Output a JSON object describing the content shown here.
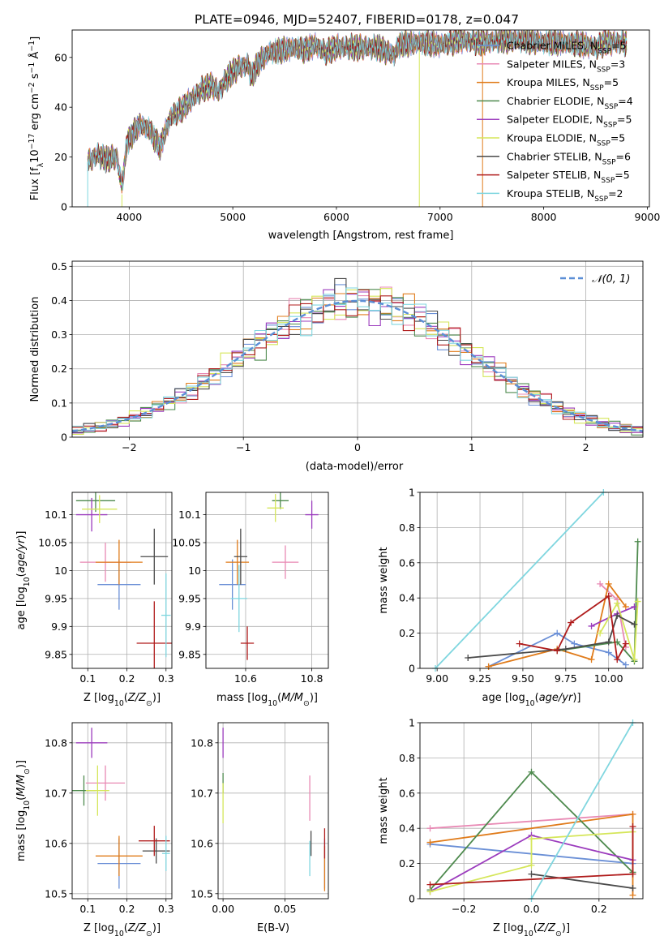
{
  "title": "PLATE=0946, MJD=52407, FIBERID=0178, z=0.047",
  "models": [
    {
      "name": "Chabrier MILES, N",
      "nssp": "=5",
      "color": "#6a8fd6"
    },
    {
      "name": "Salpeter MILES, N",
      "nssp": "=3",
      "color": "#e889b4"
    },
    {
      "name": "Kroupa MILES, N",
      "nssp": "=5",
      "color": "#e07b1a"
    },
    {
      "name": "Chabrier ELODIE, N",
      "nssp": "=4",
      "color": "#4e8a4e"
    },
    {
      "name": "Salpeter ELODIE, N",
      "nssp": "=5",
      "color": "#9b3bbd"
    },
    {
      "name": "Kroupa ELODIE, N",
      "nssp": "=5",
      "color": "#d5e65a"
    },
    {
      "name": "Chabrier STELIB, N",
      "nssp": "=6",
      "color": "#4a4a4a"
    },
    {
      "name": "Salpeter STELIB, N",
      "nssp": "=5",
      "color": "#b01c1c"
    },
    {
      "name": "Kroupa STELIB, N",
      "nssp": "=2",
      "color": "#7fd6df"
    }
  ],
  "nssp_sub": "SSP",
  "chart_data": [
    {
      "id": "spectrum",
      "type": "line",
      "xlabel": "wavelength [Angstrom, rest frame]",
      "ylabel": "Flux [f",
      "xlim": [
        3450,
        9020
      ],
      "ylim": [
        0,
        71
      ],
      "xticks": [
        4000,
        5000,
        6000,
        7000,
        8000,
        9000
      ],
      "yticks": [
        0,
        20,
        40,
        60
      ],
      "knots": [
        [
          3600,
          18
        ],
        [
          3700,
          21
        ],
        [
          3780,
          19
        ],
        [
          3880,
          20
        ],
        [
          3930,
          8
        ],
        [
          3980,
          26
        ],
        [
          4100,
          33
        ],
        [
          4200,
          31
        ],
        [
          4250,
          27
        ],
        [
          4300,
          24
        ],
        [
          4340,
          29
        ],
        [
          4400,
          36
        ],
        [
          4500,
          39
        ],
        [
          4600,
          43
        ],
        [
          4700,
          47
        ],
        [
          4800,
          49
        ],
        [
          4860,
          46
        ],
        [
          4950,
          52
        ],
        [
          5050,
          56
        ],
        [
          5150,
          57
        ],
        [
          5180,
          52
        ],
        [
          5250,
          58
        ],
        [
          5350,
          62
        ],
        [
          5500,
          63
        ],
        [
          5600,
          64
        ],
        [
          5700,
          63
        ],
        [
          5800,
          65
        ],
        [
          5890,
          62
        ],
        [
          6000,
          64
        ],
        [
          6200,
          64
        ],
        [
          6400,
          64
        ],
        [
          6560,
          61
        ],
        [
          6600,
          65
        ],
        [
          6800,
          66
        ],
        [
          7000,
          65
        ],
        [
          7200,
          67
        ],
        [
          7400,
          66
        ],
        [
          7600,
          67
        ],
        [
          7800,
          67
        ],
        [
          8000,
          66
        ],
        [
          8200,
          66
        ],
        [
          8400,
          65
        ],
        [
          8500,
          64
        ],
        [
          8600,
          66
        ],
        [
          8800,
          66
        ]
      ],
      "drops": [
        {
          "x": 6800,
          "series": 5
        },
        {
          "x": 7410,
          "series": 2
        },
        {
          "x": 3930,
          "series": 5
        }
      ]
    },
    {
      "id": "residuals",
      "type": "area",
      "xlabel": "(data-model)/error",
      "ylabel": "Normed distribution",
      "xlim": [
        -2.5,
        2.5
      ],
      "ylim": [
        0,
        0.515
      ],
      "xticks": [
        -2,
        -1,
        0,
        1,
        2
      ],
      "yticks": [
        0,
        0.1,
        0.2,
        0.3,
        0.4,
        0.5
      ],
      "bin_width": 0.1,
      "curve_label": "𝒩(0, 1)",
      "curve_color": "#5b8ed6"
    },
    {
      "id": "age_vs_Z",
      "type": "scatter",
      "xlabel": "Z [log",
      "ylabel": "age  [log",
      "xlim": [
        0.06,
        0.315
      ],
      "ylim": [
        9.825,
        10.14
      ],
      "xticks": [
        0.1,
        0.2,
        0.3
      ],
      "yticks": [
        9.85,
        9.9,
        9.95,
        10.0,
        10.05,
        10.1
      ],
      "points": [
        {
          "m": 0,
          "x": 0.18,
          "y": 9.975,
          "xe": 0.055,
          "ye": 0.045
        },
        {
          "m": 1,
          "x": 0.145,
          "y": 10.015,
          "xe": 0.065,
          "ye": 0.035
        },
        {
          "m": 2,
          "x": 0.18,
          "y": 10.015,
          "xe": 0.06,
          "ye": 0.04
        },
        {
          "m": 3,
          "x": 0.12,
          "y": 10.125,
          "xe": 0.05,
          "ye": 0.02
        },
        {
          "m": 4,
          "x": 0.11,
          "y": 10.1,
          "xe": 0.04,
          "ye": 0.03
        },
        {
          "m": 5,
          "x": 0.13,
          "y": 10.11,
          "xe": 0.045,
          "ye": 0.025
        },
        {
          "m": 6,
          "x": 0.27,
          "y": 10.025,
          "xe": 0.035,
          "ye": 0.05
        },
        {
          "m": 7,
          "x": 0.27,
          "y": 9.87,
          "xe": 0.045,
          "ye": 0.075
        },
        {
          "m": 8,
          "x": 0.3,
          "y": 9.92,
          "xe": 0.012,
          "ye": 0.075
        }
      ]
    },
    {
      "id": "age_vs_mass",
      "type": "scatter",
      "xlabel": "mass [log",
      "ylabel": "",
      "xlim": [
        10.48,
        10.85
      ],
      "ylim": [
        9.825,
        10.14
      ],
      "xticks": [
        10.6,
        10.8
      ],
      "yticks": [
        9.85,
        9.9,
        9.95,
        10.0,
        10.05,
        10.1
      ],
      "points": [
        {
          "m": 0,
          "x": 10.56,
          "y": 9.975,
          "xe": 0.04,
          "ye": 0.045
        },
        {
          "m": 1,
          "x": 10.72,
          "y": 10.015,
          "xe": 0.04,
          "ye": 0.03
        },
        {
          "m": 2,
          "x": 10.575,
          "y": 10.015,
          "xe": 0.035,
          "ye": 0.04
        },
        {
          "m": 3,
          "x": 10.705,
          "y": 10.125,
          "xe": 0.025,
          "ye": 0.015
        },
        {
          "m": 4,
          "x": 10.8,
          "y": 10.1,
          "xe": 0.02,
          "ye": 0.025
        },
        {
          "m": 5,
          "x": 10.69,
          "y": 10.112,
          "xe": 0.025,
          "ye": 0.025
        },
        {
          "m": 6,
          "x": 10.585,
          "y": 10.025,
          "xe": 0.02,
          "ye": 0.05
        },
        {
          "m": 7,
          "x": 10.605,
          "y": 9.87,
          "xe": 0.02,
          "ye": 0.03
        },
        {
          "m": 8,
          "x": 10.58,
          "y": 9.95,
          "xe": 0.025,
          "ye": 0.06
        }
      ]
    },
    {
      "id": "weight_vs_age",
      "type": "line",
      "xlabel": "age  [log",
      "ylabel": "mass weight",
      "xlim": [
        8.9,
        10.2
      ],
      "ylim": [
        0,
        1.0
      ],
      "xticks": [
        9.0,
        9.25,
        9.5,
        9.75,
        10.0
      ],
      "xticklabels": [
        "9.00",
        "9.25",
        "9.50",
        "9.75",
        "10.00"
      ],
      "yticks": [
        0,
        0.2,
        0.4,
        0.6,
        0.8,
        1.0
      ],
      "series": [
        {
          "m": 0,
          "points": [
            [
              9.3,
              0.01
            ],
            [
              9.7,
              0.2
            ],
            [
              9.8,
              0.14
            ],
            [
              10.0,
              0.09
            ],
            [
              10.1,
              0.02
            ]
          ]
        },
        {
          "m": 1,
          "points": [
            [
              9.95,
              0.48
            ],
            [
              10.05,
              0.39
            ],
            [
              10.1,
              0.12
            ]
          ]
        },
        {
          "m": 2,
          "points": [
            [
              9.3,
              0.01
            ],
            [
              9.7,
              0.11
            ],
            [
              9.9,
              0.05
            ],
            [
              10.0,
              0.48
            ],
            [
              10.1,
              0.35
            ]
          ]
        },
        {
          "m": 3,
          "points": [
            [
              9.7,
              0.1
            ],
            [
              10.05,
              0.15
            ],
            [
              10.15,
              0.04
            ],
            [
              10.17,
              0.72
            ]
          ]
        },
        {
          "m": 4,
          "points": [
            [
              9.9,
              0.24
            ],
            [
              10.05,
              0.31
            ],
            [
              10.15,
              0.35
            ]
          ]
        },
        {
          "m": 5,
          "points": [
            [
              9.95,
              0.2
            ],
            [
              10.05,
              0.37
            ],
            [
              10.15,
              0.05
            ],
            [
              10.17,
              0.38
            ]
          ]
        },
        {
          "m": 6,
          "points": [
            [
              9.18,
              0.06
            ],
            [
              9.75,
              0.11
            ],
            [
              10.0,
              0.15
            ],
            [
              10.05,
              0.3
            ],
            [
              10.15,
              0.25
            ]
          ]
        },
        {
          "m": 7,
          "points": [
            [
              9.48,
              0.14
            ],
            [
              9.7,
              0.1
            ],
            [
              9.78,
              0.26
            ],
            [
              10.0,
              0.41
            ],
            [
              10.05,
              0.05
            ],
            [
              10.1,
              0.14
            ]
          ]
        },
        {
          "m": 8,
          "points": [
            [
              8.99,
              0.0
            ],
            [
              9.97,
              1.0
            ]
          ]
        }
      ]
    },
    {
      "id": "mass_vs_Z",
      "type": "scatter",
      "xlabel": "Z [log",
      "ylabel": "mass [log",
      "xlim": [
        0.06,
        0.315
      ],
      "ylim": [
        10.49,
        10.84
      ],
      "xticks": [
        0.1,
        0.2,
        0.3
      ],
      "yticks": [
        10.5,
        10.6,
        10.7,
        10.8
      ],
      "points": [
        {
          "m": 0,
          "x": 0.18,
          "y": 10.56,
          "xe": 0.055,
          "ye": 0.05
        },
        {
          "m": 1,
          "x": 0.145,
          "y": 10.72,
          "xe": 0.05,
          "ye": 0.035
        },
        {
          "m": 2,
          "x": 0.18,
          "y": 10.575,
          "xe": 0.06,
          "ye": 0.04
        },
        {
          "m": 3,
          "x": 0.09,
          "y": 10.705,
          "xe": 0.03,
          "ye": 0.03
        },
        {
          "m": 4,
          "x": 0.11,
          "y": 10.8,
          "xe": 0.04,
          "ye": 0.03
        },
        {
          "m": 5,
          "x": 0.125,
          "y": 10.705,
          "xe": 0.03,
          "ye": 0.05
        },
        {
          "m": 6,
          "x": 0.275,
          "y": 10.585,
          "xe": 0.035,
          "ye": 0.025
        },
        {
          "m": 7,
          "x": 0.27,
          "y": 10.605,
          "xe": 0.04,
          "ye": 0.03
        },
        {
          "m": 8,
          "x": 0.3,
          "y": 10.58,
          "xe": 0.01,
          "ye": 0.035
        }
      ]
    },
    {
      "id": "mass_vs_EBV",
      "type": "scatter",
      "xlabel": "E(B-V)",
      "ylabel": "",
      "xlim": [
        -0.004,
        0.085
      ],
      "ylim": [
        10.49,
        10.84
      ],
      "xticks": [
        0.0,
        0.05
      ],
      "xticklabels": [
        "0.00",
        "0.05"
      ],
      "yticks": [
        10.5,
        10.6,
        10.7,
        10.8
      ],
      "points": [
        {
          "m": 0,
          "x": 0.082,
          "y": 10.56,
          "xe": 0,
          "ye": 0.05
        },
        {
          "m": 1,
          "x": 0.07,
          "y": 10.69,
          "xe": 0,
          "ye": 0.045
        },
        {
          "m": 2,
          "x": 0.082,
          "y": 10.55,
          "xe": 0,
          "ye": 0.045
        },
        {
          "m": 3,
          "x": 0.0,
          "y": 10.72,
          "xe": 0,
          "ye": 0.02
        },
        {
          "m": 4,
          "x": 0.0,
          "y": 10.8,
          "xe": 0,
          "ye": 0.03
        },
        {
          "m": 5,
          "x": 0.0,
          "y": 10.68,
          "xe": 0,
          "ye": 0.04
        },
        {
          "m": 6,
          "x": 0.071,
          "y": 10.6,
          "xe": 0,
          "ye": 0.025
        },
        {
          "m": 7,
          "x": 0.082,
          "y": 10.6,
          "xe": 0,
          "ye": 0.03
        },
        {
          "m": 8,
          "x": 0.07,
          "y": 10.57,
          "xe": 0,
          "ye": 0.035
        }
      ]
    },
    {
      "id": "weight_vs_Z",
      "type": "line",
      "xlabel": "Z [log",
      "ylabel": "mass weight",
      "xlim": [
        -0.33,
        0.33
      ],
      "ylim": [
        0,
        1.0
      ],
      "xticks": [
        -0.2,
        0.0,
        0.2
      ],
      "xticklabels": [
        "−0.2",
        "0.0",
        "0.2"
      ],
      "yticks": [
        0,
        0.2,
        0.4,
        0.6,
        0.8,
        1.0
      ],
      "series": [
        {
          "m": 0,
          "points": [
            [
              -0.3,
              0.31
            ],
            [
              0.3,
              0.2
            ]
          ]
        },
        {
          "m": 1,
          "points": [
            [
              -0.3,
              0.4
            ],
            [
              0.3,
              0.48
            ]
          ]
        },
        {
          "m": 2,
          "points": [
            [
              -0.3,
              0.32
            ],
            [
              0.3,
              0.48
            ],
            [
              0.3,
              0.02
            ]
          ]
        },
        {
          "m": 3,
          "points": [
            [
              -0.3,
              0.05
            ],
            [
              0.0,
              0.72
            ],
            [
              0.3,
              0.15
            ]
          ]
        },
        {
          "m": 4,
          "points": [
            [
              -0.3,
              0.04
            ],
            [
              0.0,
              0.36
            ],
            [
              0.3,
              0.22
            ]
          ]
        },
        {
          "m": 5,
          "points": [
            [
              -0.3,
              0.04
            ],
            [
              0.0,
              0.19
            ],
            [
              0.0,
              0.34
            ],
            [
              0.3,
              0.38
            ]
          ]
        },
        {
          "m": 6,
          "points": [
            [
              0.0,
              0.14
            ],
            [
              0.3,
              0.06
            ]
          ]
        },
        {
          "m": 7,
          "points": [
            [
              -0.3,
              0.08
            ],
            [
              0.3,
              0.14
            ],
            [
              0.3,
              0.41
            ]
          ]
        },
        {
          "m": 8,
          "points": [
            [
              0.0,
              0.0
            ],
            [
              0.3,
              1.0
            ]
          ]
        }
      ]
    }
  ]
}
